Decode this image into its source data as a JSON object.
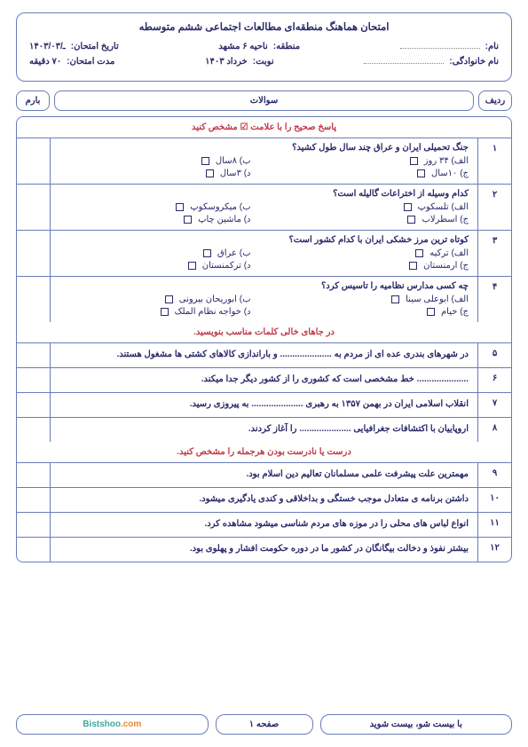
{
  "header": {
    "title": "امتحان هماهنگ منطقه‌ای مطالعات اجتماعی ششم متوسطه",
    "name_label": "نام:",
    "region_label": "منطقه:",
    "region_value": "ناحیه ۶ مشهد",
    "date_label": "تاریخ امتحان:",
    "date_value": "ـ/۱۴۰۳/۰۳",
    "family_label": "نام خانوادگی:",
    "term_label": "نوبت:",
    "term_value": "خرداد ۱۴۰۳",
    "duration_label": "مدت امتحان:",
    "duration_value": "۷۰ دقیقه"
  },
  "table_head": {
    "row": "ردیف",
    "question": "سوالات",
    "score": "بارم"
  },
  "section1_title_a": "پاسخ صحیح را با علامت",
  "section1_title_b": "مشخص کنید",
  "mcq": [
    {
      "num": "۱",
      "q": "جنگ تحمیلی ایران و عراق چند سال طول کشید؟",
      "opts": [
        "الف) ۳۴ روز",
        "ب) ۸سال",
        "ج) ۱۰سال",
        "د) ۳سال"
      ]
    },
    {
      "num": "۲",
      "q": "کدام وسیله از اختراعات گالیله است؟",
      "opts": [
        "الف) تلسکوپ",
        "ب) میکروسکوپ",
        "ج) اسطرلاب",
        "د) ماشین چاپ"
      ]
    },
    {
      "num": "۳",
      "q": "کوتاه ترین مرز خشکی ایران با کدام کشور است؟",
      "opts": [
        "الف) ترکیه",
        "ب) عراق",
        "ج) ارمنستان",
        "د) ترکمنستان"
      ]
    },
    {
      "num": "۴",
      "q": "چه کسی مدارس نظامیه را تاسیس کرد؟",
      "opts": [
        "الف) ابوعلی سینا",
        "ب) ابوریحان بیرونی",
        "ج) خیام",
        "د) خواجه نظام الملک"
      ]
    }
  ],
  "section2_title": "در جاهای خالی کلمات مناسب بنویسید.",
  "fill": [
    {
      "num": "۵",
      "text": "در شهرهای بندری عده ای از مردم به ..................... و باراندازی کالاهای کشتی ها مشغول هستند."
    },
    {
      "num": "۶",
      "text": "..................... خط مشخصی است که کشوری را از کشور دیگر جدا میکند."
    },
    {
      "num": "۷",
      "text": "انقلاب اسلامی ایران در بهمن ۱۳۵۷ به رهبری ..................... به پیروزی رسید."
    },
    {
      "num": "۸",
      "text": "اروپاییان با اکتشافات جغرافیایی ..................... را آغاز کردند."
    }
  ],
  "section3_title": "درست یا نادرست بودن هرجمله را مشخص کنید.",
  "truefalse": [
    {
      "num": "۹",
      "text": "مهمترین علت پیشرفت علمی مسلمانان تعالیم دین اسلام بود."
    },
    {
      "num": "۱۰",
      "text": "داشتن برنامه ی متعادل موجب خستگی و بداخلاقی و کندی یادگیری میشود."
    },
    {
      "num": "۱۱",
      "text": "انواع لباس های محلی را در موزه های مردم شناسی میشود مشاهده کرد."
    },
    {
      "num": "۱۲",
      "text": "بیشتر نفوذ و دخالت بیگانگان در کشور ما در دوره حکومت افشار و پهلوی بود."
    }
  ],
  "footer": {
    "right": "با بیست شو، بیست شوید",
    "mid": "صفحه ۱",
    "left_a": "Bistshoo",
    "left_b": ".com"
  }
}
